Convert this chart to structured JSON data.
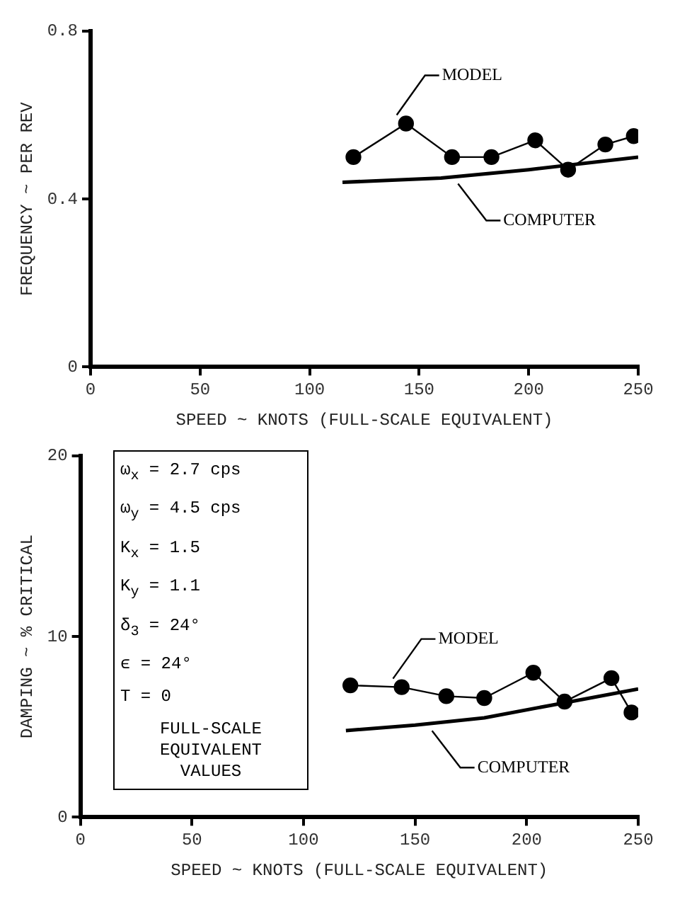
{
  "chart_data": [
    {
      "type": "line",
      "xlabel": "SPEED ~ KNOTS (FULL-SCALE EQUIVALENT)",
      "ylabel": "FREQUENCY ~ PER REV",
      "xlim": [
        0,
        250
      ],
      "xticks": [
        0,
        50,
        100,
        150,
        200,
        250
      ],
      "ylim": [
        0,
        0.8
      ],
      "yticks": [
        0,
        0.4,
        0.8
      ],
      "grid": false,
      "legend": false,
      "series": [
        {
          "name": "MODEL",
          "color": "#000000",
          "marker": "circle",
          "x": [
            120,
            144,
            165,
            183,
            203,
            218,
            235,
            248
          ],
          "values": [
            0.5,
            0.58,
            0.5,
            0.5,
            0.54,
            0.47,
            0.53,
            0.55
          ]
        },
        {
          "name": "COMPUTER",
          "color": "#000000",
          "marker": "none",
          "x": [
            115,
            160,
            200,
            250
          ],
          "values": [
            0.44,
            0.45,
            0.47,
            0.5
          ]
        }
      ]
    },
    {
      "type": "line",
      "xlabel": "SPEED ~ KNOTS (FULL-SCALE EQUIVALENT)",
      "ylabel": "DAMPING ~ % CRITICAL",
      "xlim": [
        0,
        250
      ],
      "xticks": [
        0,
        50,
        100,
        150,
        200,
        250
      ],
      "ylim": [
        0,
        20
      ],
      "yticks": [
        0,
        10,
        20
      ],
      "grid": false,
      "legend": false,
      "annotations": [
        "ω$_{x}$ = 2.7 cps",
        "ω$_{y}$ = 4.5 cps",
        "K$_{x}$ = 1.5",
        "K$_{y}$ = 1.1",
        "δ$_{3}$ = 24°",
        "ϵ = 24°",
        "T = 0",
        "FULL-SCALE EQUIVALENT VALUES"
      ],
      "series": [
        {
          "name": "MODEL",
          "color": "#000000",
          "marker": "circle",
          "x": [
            121,
            144,
            164,
            181,
            203,
            217,
            238,
            247
          ],
          "values": [
            7.3,
            7.2,
            6.7,
            6.6,
            8.0,
            6.4,
            7.7,
            5.8
          ]
        },
        {
          "name": "COMPUTER",
          "color": "#000000",
          "marker": "none",
          "x": [
            119,
            150,
            181,
            211,
            250
          ],
          "values": [
            4.8,
            5.1,
            5.5,
            6.2,
            7.1
          ]
        }
      ]
    }
  ]
}
